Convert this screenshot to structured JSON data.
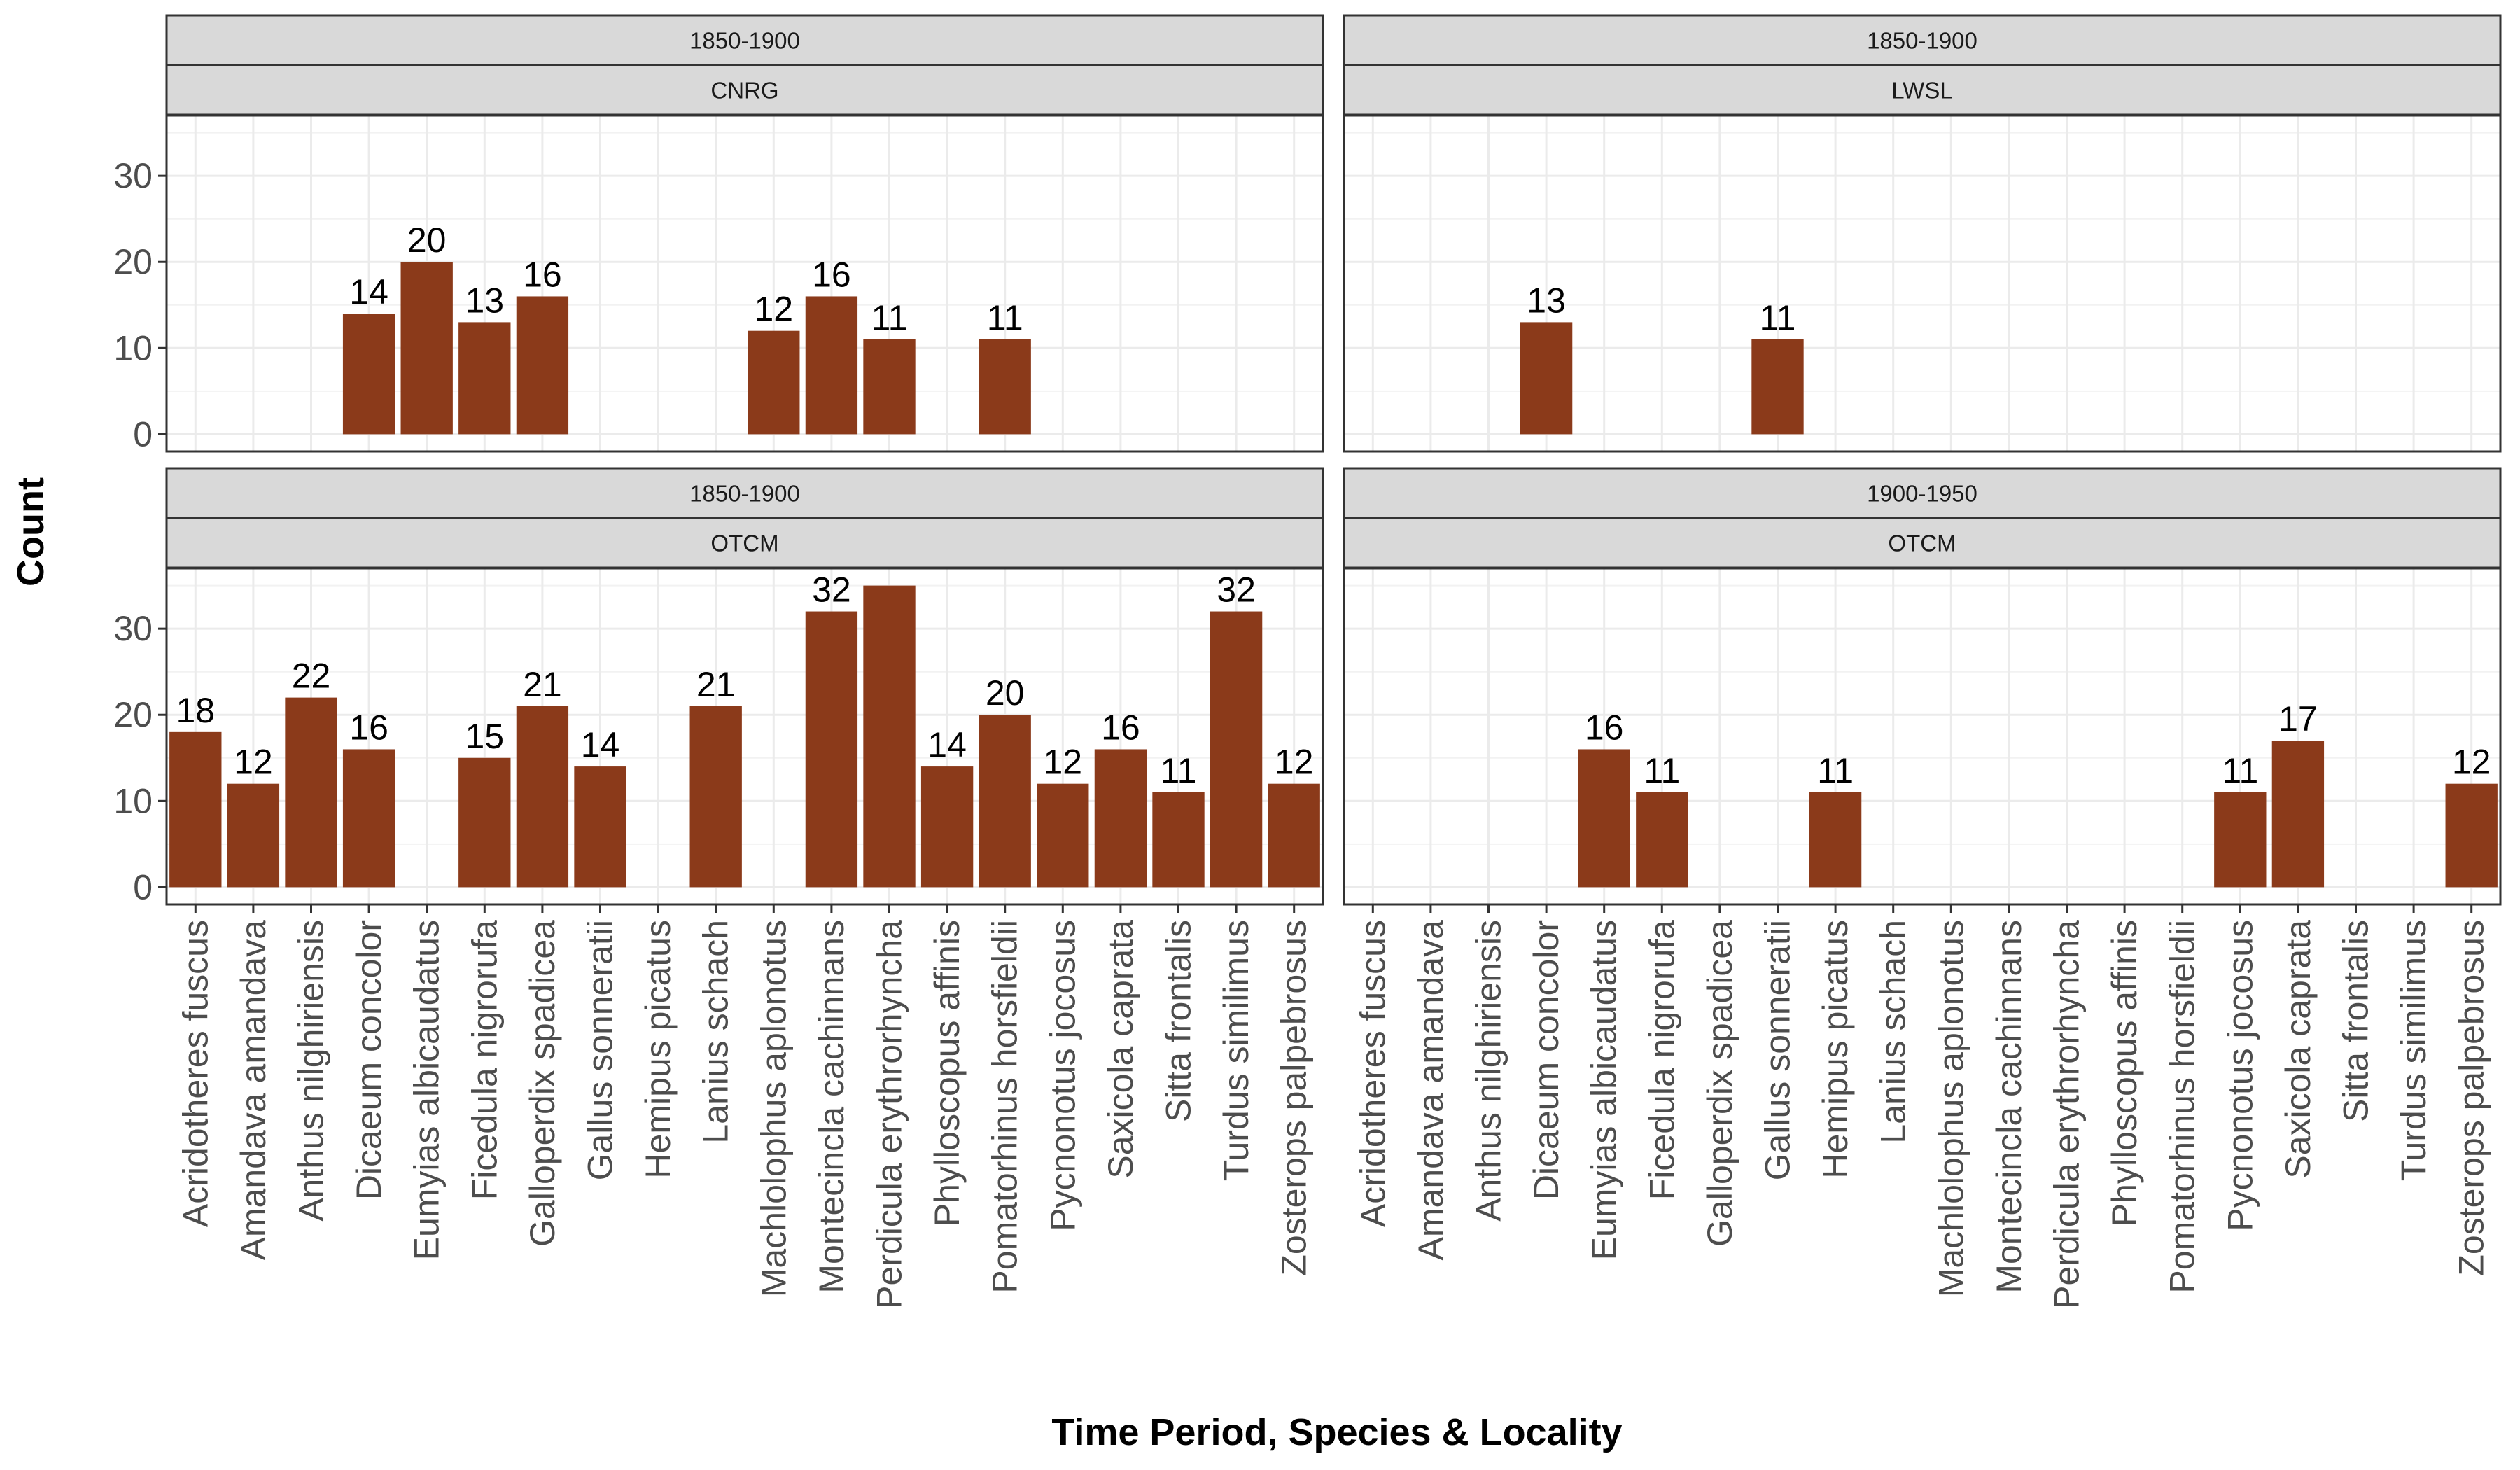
{
  "chart_data": {
    "type": "bar",
    "xlabel": "Time Period, Species & Locality",
    "ylabel": "Count",
    "ylim": [
      -2,
      37
    ],
    "yticks": [
      0,
      10,
      20,
      30
    ],
    "grid": true,
    "bar_color": "#8B3A1A",
    "categories": [
      "Acridotheres fuscus",
      "Amandava amandava",
      "Anthus nilghiriensis",
      "Dicaeum concolor",
      "Eumyias albicaudatus",
      "Ficedula nigrorufa",
      "Galloperdix spadicea",
      "Gallus sonneratii",
      "Hemipus picatus",
      "Lanius schach",
      "Machlolophus aplonotus",
      "Montecincla cachinnans",
      "Perdicula erythrorhyncha",
      "Phylloscopus affinis",
      "Pomatorhinus horsfieldii",
      "Pycnonotus jocosus",
      "Saxicola caprata",
      "Sitta frontalis",
      "Turdus similimus",
      "Zosterops palpebrosus"
    ],
    "panels": [
      {
        "period": "1850-1900",
        "locality": "CNRG",
        "values": [
          null,
          null,
          null,
          14,
          20,
          13,
          16,
          null,
          null,
          null,
          12,
          16,
          11,
          null,
          11,
          null,
          null,
          null,
          null,
          null
        ],
        "labels": [
          "",
          "",
          "",
          "14",
          "20",
          "13",
          "16",
          "",
          "",
          "",
          "12",
          "16",
          "11",
          "",
          "11",
          "",
          "",
          "",
          "",
          ""
        ]
      },
      {
        "period": "1850-1900",
        "locality": "LWSL",
        "values": [
          null,
          null,
          null,
          13,
          null,
          null,
          null,
          11,
          null,
          null,
          null,
          null,
          null,
          null,
          null,
          null,
          null,
          null,
          null,
          null
        ],
        "labels": [
          "",
          "",
          "",
          "13",
          "",
          "",
          "",
          "11",
          "",
          "",
          "",
          "",
          "",
          "",
          "",
          "",
          "",
          "",
          "",
          ""
        ]
      },
      {
        "period": "1850-1900",
        "locality": "OTCM",
        "values": [
          18,
          12,
          22,
          16,
          null,
          15,
          21,
          14,
          null,
          21,
          null,
          32,
          35,
          14,
          20,
          12,
          16,
          11,
          32,
          12
        ],
        "labels": [
          "18",
          "12",
          "22",
          "16",
          "",
          "15",
          "21",
          "14",
          "",
          "21",
          "",
          "32",
          "",
          "14",
          "20",
          "12",
          "16",
          "11",
          "32",
          "12"
        ]
      },
      {
        "period": "1900-1950",
        "locality": "OTCM",
        "values": [
          null,
          null,
          null,
          null,
          16,
          11,
          null,
          null,
          11,
          null,
          null,
          null,
          null,
          null,
          null,
          11,
          17,
          null,
          null,
          12
        ],
        "labels": [
          "",
          "",
          "",
          "",
          "16",
          "11",
          "",
          "",
          "11",
          "",
          "",
          "",
          "",
          "",
          "",
          "11",
          "17",
          "",
          "",
          "12"
        ]
      }
    ]
  }
}
